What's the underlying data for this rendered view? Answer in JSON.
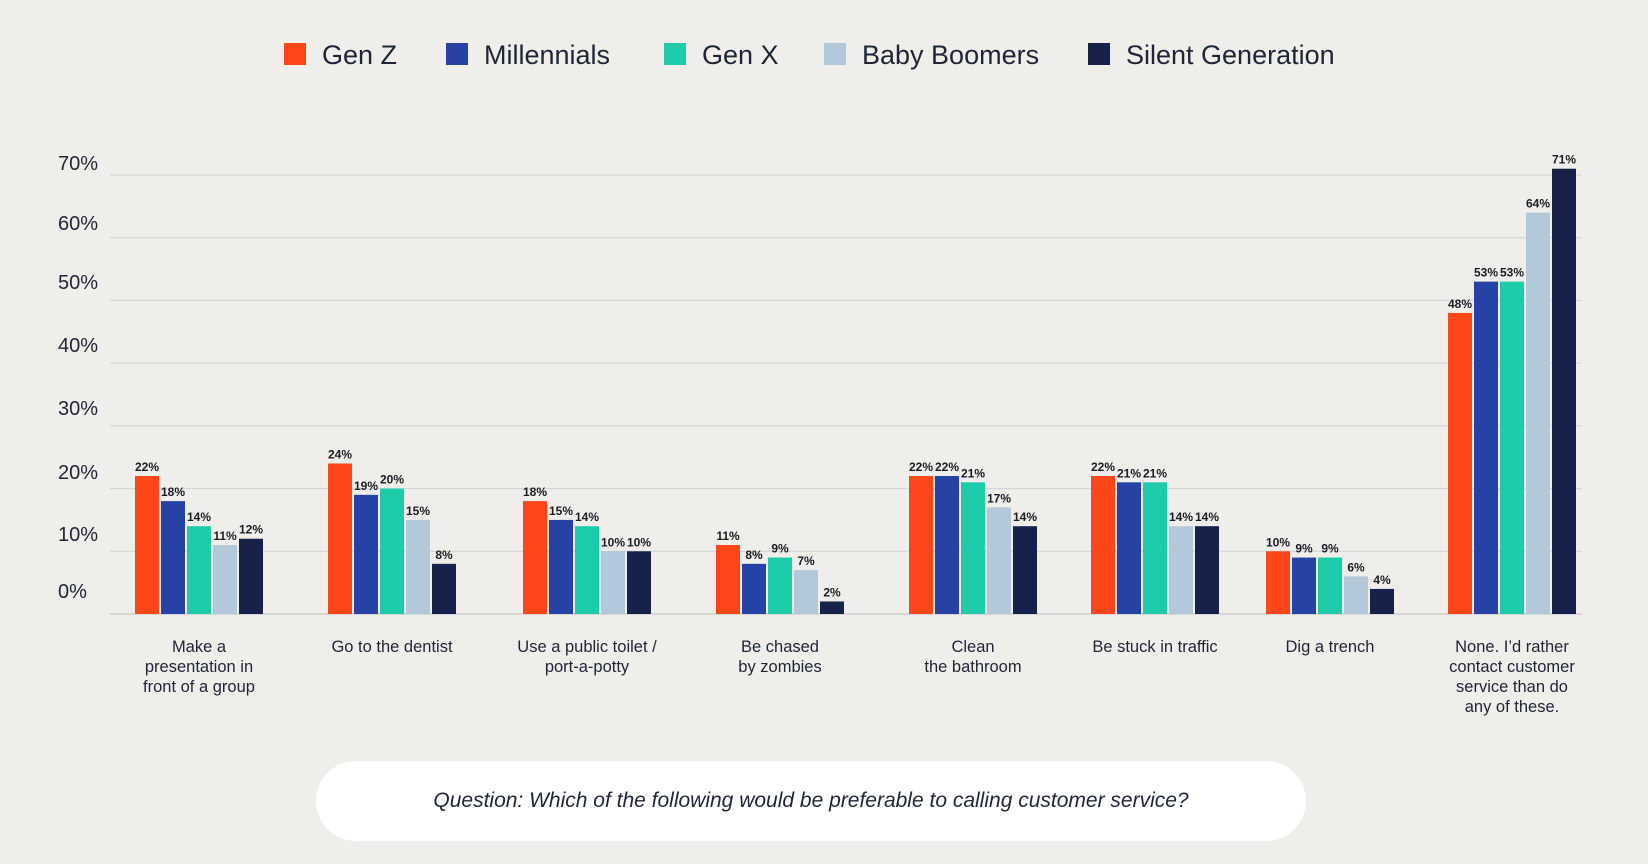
{
  "chart_data": {
    "type": "bar",
    "categories": [
      [
        "Make a",
        "presentation in",
        "front of a group"
      ],
      [
        "Go to the dentist"
      ],
      [
        "Use a public toilet /",
        "port-a-potty"
      ],
      [
        "Be chased",
        "by zombies"
      ],
      [
        "Clean",
        "the bathroom"
      ],
      [
        "Be stuck in traffic"
      ],
      [
        "Dig a trench"
      ],
      [
        "None. I’d rather",
        "contact customer",
        "service than do",
        "any of these."
      ]
    ],
    "series": [
      {
        "name": "Gen Z",
        "color": "#ff4619",
        "values": [
          22,
          24,
          18,
          11,
          22,
          22,
          10,
          48
        ]
      },
      {
        "name": "Millennials",
        "color": "#2742a5",
        "values": [
          18,
          19,
          15,
          8,
          22,
          21,
          9,
          53
        ]
      },
      {
        "name": "Gen X",
        "color": "#1ecba9",
        "values": [
          14,
          20,
          14,
          9,
          21,
          21,
          9,
          53
        ]
      },
      {
        "name": "Baby Boomers",
        "color": "#b3c8d8",
        "values": [
          11,
          15,
          10,
          7,
          17,
          14,
          6,
          64
        ]
      },
      {
        "name": "Silent Generation",
        "color": "#17224a",
        "values": [
          12,
          8,
          10,
          2,
          14,
          14,
          4,
          71
        ]
      }
    ],
    "yticks": [
      "0%",
      "10%",
      "20%",
      "30%",
      "40%",
      "50%",
      "60%",
      "70%"
    ],
    "ylim": [
      0,
      70
    ],
    "value_suffix": "%",
    "grid": true,
    "legend_position": "top"
  },
  "question": "Question: Which of the following would be preferable to calling customer service?"
}
